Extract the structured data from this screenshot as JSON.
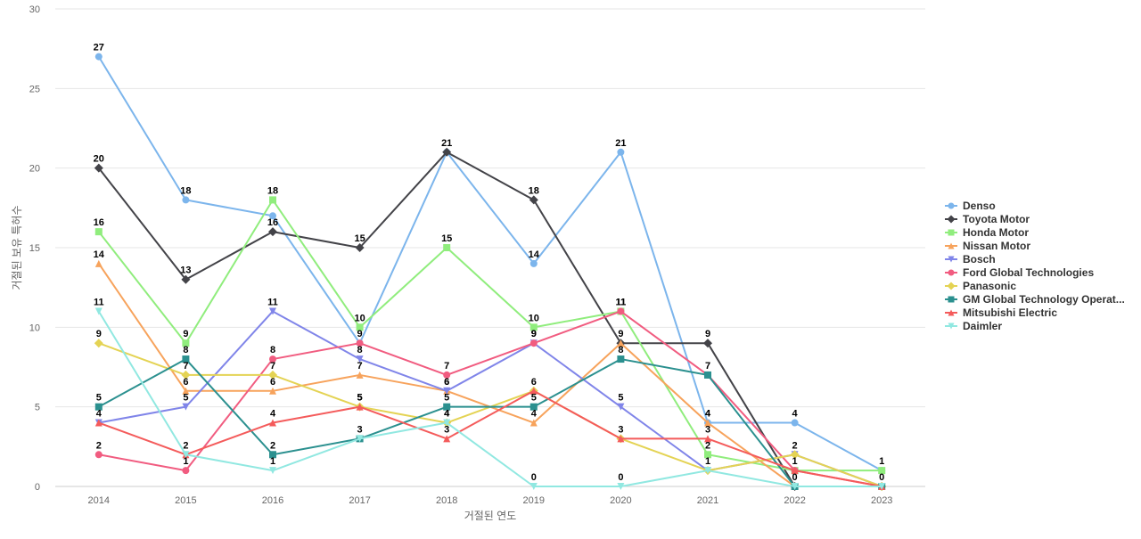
{
  "chart_data": {
    "type": "line",
    "xlabel": "거절된 연도",
    "ylabel": "거절된 보유 특허수",
    "ylim": [
      0,
      30
    ],
    "yticks": [
      0,
      5,
      10,
      15,
      20,
      25,
      30
    ],
    "grid": true,
    "legend_position": "right",
    "categories": [
      "2014",
      "2015",
      "2016",
      "2017",
      "2018",
      "2019",
      "2020",
      "2021",
      "2022",
      "2023"
    ],
    "series": [
      {
        "name": "Denso",
        "color": "#7cb5ec",
        "marker": "circle",
        "values": [
          27,
          18,
          17,
          9,
          21,
          14,
          21,
          4,
          4,
          1
        ],
        "labels": [
          27,
          18,
          null,
          null,
          null,
          14,
          21,
          4,
          4,
          null
        ]
      },
      {
        "name": "Toyota Motor",
        "color": "#434348",
        "marker": "diamond",
        "values": [
          20,
          13,
          16,
          15,
          21,
          18,
          9,
          9,
          0,
          0
        ],
        "labels": [
          20,
          13,
          16,
          15,
          21,
          18,
          null,
          9,
          null,
          null
        ]
      },
      {
        "name": "Honda Motor",
        "color": "#90ed7d",
        "marker": "square",
        "values": [
          16,
          9,
          18,
          10,
          15,
          10,
          11,
          2,
          1,
          1
        ],
        "labels": [
          16,
          9,
          18,
          10,
          15,
          10,
          11,
          2,
          null,
          1
        ]
      },
      {
        "name": "Nissan Motor",
        "color": "#f7a35c",
        "marker": "triangle",
        "values": [
          14,
          6,
          6,
          7,
          6,
          4,
          9,
          4,
          0,
          0
        ],
        "labels": [
          14,
          6,
          6,
          7,
          6,
          4,
          9,
          4,
          null,
          null
        ]
      },
      {
        "name": "Bosch",
        "color": "#8085e9",
        "marker": "triangle-down",
        "values": [
          4,
          5,
          11,
          8,
          6,
          9,
          5,
          1,
          2,
          0
        ],
        "labels": [
          4,
          5,
          11,
          8,
          6,
          9,
          5,
          1,
          2,
          null
        ]
      },
      {
        "name": "Ford Global Technologies",
        "color": "#f15c80",
        "marker": "circle",
        "values": [
          2,
          1,
          8,
          9,
          7,
          9,
          11,
          7,
          1,
          0
        ],
        "labels": [
          2,
          1,
          8,
          9,
          7,
          9,
          11,
          null,
          1,
          null
        ]
      },
      {
        "name": "Panasonic",
        "color": "#e4d354",
        "marker": "diamond",
        "values": [
          9,
          7,
          7,
          5,
          4,
          6,
          3,
          1,
          2,
          0
        ],
        "labels": [
          9,
          7,
          7,
          5,
          4,
          6,
          3,
          null,
          null,
          null
        ]
      },
      {
        "name": "GM Global Technology Operat...",
        "color": "#2b908f",
        "marker": "square",
        "values": [
          5,
          8,
          2,
          3,
          5,
          5,
          8,
          7,
          0,
          0
        ],
        "labels": [
          5,
          8,
          2,
          3,
          5,
          5,
          8,
          7,
          0,
          0
        ]
      },
      {
        "name": "Mitsubishi Electric",
        "color": "#f45b5b",
        "marker": "triangle",
        "values": [
          4,
          2,
          4,
          5,
          3,
          6,
          3,
          3,
          1,
          0
        ],
        "labels": [
          null,
          null,
          4,
          5,
          3,
          null,
          null,
          3,
          null,
          null
        ]
      },
      {
        "name": "Daimler",
        "color": "#91e8e1",
        "marker": "triangle-down",
        "values": [
          11,
          2,
          1,
          3,
          4,
          0,
          0,
          1,
          0,
          0
        ],
        "labels": [
          11,
          2,
          1,
          null,
          4,
          0,
          0,
          null,
          null,
          null
        ]
      }
    ]
  }
}
